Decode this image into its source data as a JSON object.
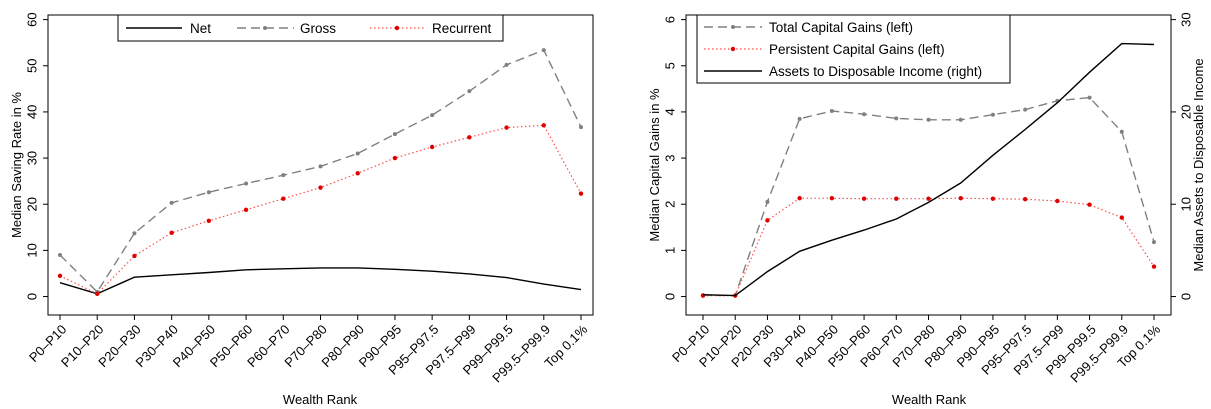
{
  "chart_data": [
    {
      "type": "line",
      "title": "",
      "xlabel": "Wealth Rank",
      "ylabel": "Median Saving Rate in %",
      "ylim": [
        -4,
        61
      ],
      "yticks": [
        0,
        10,
        20,
        30,
        40,
        50,
        60
      ],
      "grid": false,
      "legend_position": "top",
      "categories": [
        "P0–P10",
        "P10–P20",
        "P20–P30",
        "P30–P40",
        "P40–P50",
        "P50–P60",
        "P60–P70",
        "P70–P80",
        "P80–P90",
        "P90–P95",
        "P95–P97.5",
        "P97.5–P99",
        "P99–P99.5",
        "P99.5–P99.9",
        "Top 0.1%"
      ],
      "series": [
        {
          "name": "Net",
          "axis": "left",
          "color": "#000000",
          "style": "solid",
          "marker": "none",
          "values": [
            3.0,
            0.6,
            4.2,
            4.7,
            5.2,
            5.8,
            6.0,
            6.2,
            6.2,
            5.9,
            5.5,
            4.9,
            4.1,
            2.7,
            1.5
          ]
        },
        {
          "name": "Gross",
          "axis": "left",
          "color": "#808080",
          "style": "dashed",
          "marker": "dot",
          "values": [
            9.0,
            1.0,
            13.7,
            20.3,
            22.6,
            24.5,
            26.3,
            28.2,
            31.0,
            35.2,
            39.3,
            44.5,
            50.2,
            53.4,
            36.7
          ]
        },
        {
          "name": "Recurrent",
          "axis": "left",
          "color": "#ff4d4d",
          "style": "dotted",
          "marker": "dot",
          "values": [
            4.5,
            0.6,
            8.8,
            13.8,
            16.4,
            18.8,
            21.2,
            23.6,
            26.7,
            30.0,
            32.4,
            34.5,
            36.6,
            37.1,
            22.3
          ]
        }
      ]
    },
    {
      "type": "line",
      "title": "",
      "xlabel": "Wealth Rank",
      "ylabel": "Median Capital Gains in %",
      "y2label": "Median Assets to Disposable Income",
      "ylim": [
        -0.4,
        6.1
      ],
      "yticks": [
        0,
        1,
        2,
        3,
        4,
        5,
        6
      ],
      "y2lim": [
        -2,
        30.5
      ],
      "y2ticks": [
        0,
        10,
        20,
        30
      ],
      "grid": false,
      "legend_position": "top-left",
      "categories": [
        "P0–P10",
        "P10–P20",
        "P20–P30",
        "P30–P40",
        "P40–P50",
        "P50–P60",
        "P60–P70",
        "P70–P80",
        "P80–P90",
        "P90–P95",
        "P95–P97.5",
        "P97.5–P99",
        "P99–P99.5",
        "P99.5–P99.9",
        "Top 0.1%"
      ],
      "series": [
        {
          "name": "Total Capital Gains (left)",
          "axis": "left",
          "color": "#808080",
          "style": "dashed",
          "marker": "dot",
          "values": [
            0.03,
            0.02,
            2.05,
            3.85,
            4.02,
            3.95,
            3.86,
            3.83,
            3.83,
            3.94,
            4.05,
            4.24,
            4.31,
            3.57,
            1.18
          ]
        },
        {
          "name": "Persistent Capital Gains (left)",
          "axis": "left",
          "color": "#ff4d4d",
          "style": "dotted",
          "marker": "dot",
          "values": [
            0.02,
            0.02,
            1.65,
            2.13,
            2.13,
            2.12,
            2.12,
            2.12,
            2.13,
            2.12,
            2.11,
            2.07,
            1.99,
            1.71,
            0.65
          ]
        },
        {
          "name": "Assets to Disposable Income (right)",
          "axis": "right",
          "color": "#000000",
          "style": "solid",
          "marker": "none",
          "values": [
            0.2,
            0.1,
            2.7,
            4.9,
            6.1,
            7.2,
            8.4,
            10.2,
            12.3,
            15.3,
            18.1,
            21.0,
            24.3,
            27.4,
            27.3
          ]
        }
      ]
    }
  ]
}
